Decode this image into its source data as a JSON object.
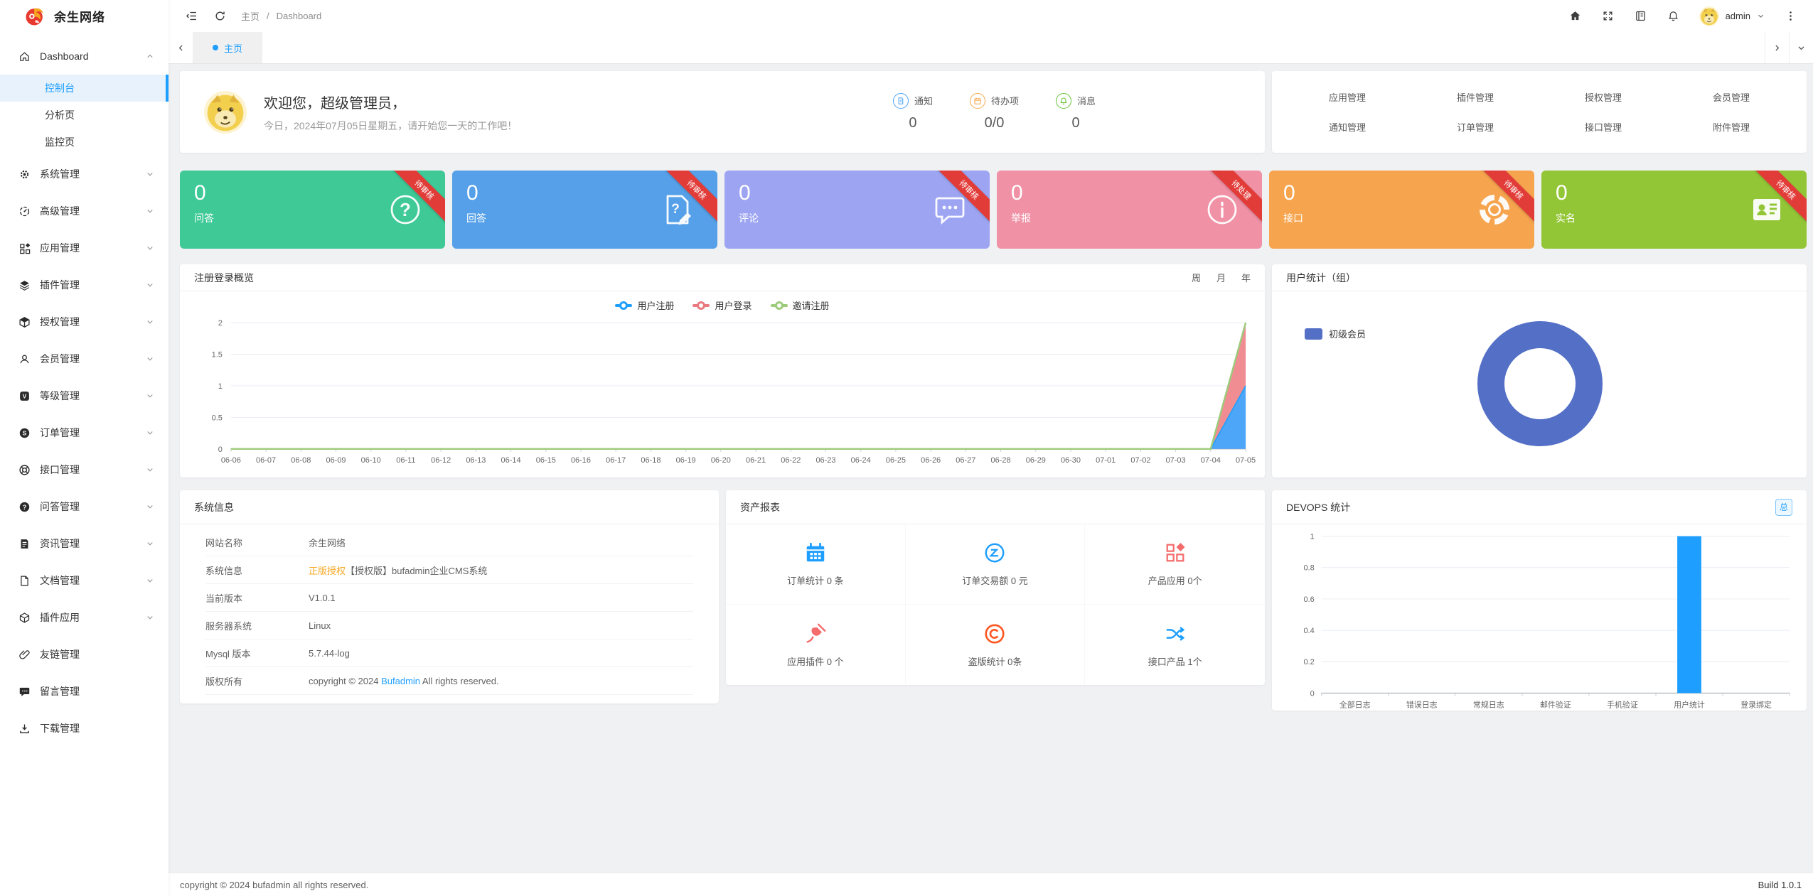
{
  "app": {
    "brand": "余生网络",
    "accent": "#1e9fff"
  },
  "header": {
    "left_icons": [
      "collapse-icon",
      "refresh-icon"
    ],
    "breadcrumb": {
      "home": "主页",
      "separator": "/",
      "current": "Dashboard"
    },
    "right_icons": [
      "home-solid-icon",
      "fullscreen-icon",
      "manual-icon",
      "bell-icon"
    ],
    "user": "admin"
  },
  "tabs": {
    "active": "主页"
  },
  "sidebar": {
    "sections": [
      {
        "id": "dashboard",
        "label": "Dashboard",
        "icon": "home-outline-icon",
        "expanded": true,
        "children": [
          {
            "label": "控制台",
            "active": true
          },
          {
            "label": "分析页"
          },
          {
            "label": "监控页"
          }
        ]
      },
      {
        "id": "system",
        "label": "系统管理",
        "icon": "gear-icon"
      },
      {
        "id": "advanced",
        "label": "高级管理",
        "icon": "gauge-icon"
      },
      {
        "id": "application",
        "label": "应用管理",
        "icon": "apps-icon"
      },
      {
        "id": "plugin",
        "label": "插件管理",
        "icon": "layers-icon"
      },
      {
        "id": "license",
        "label": "授权管理",
        "icon": "cube-icon"
      },
      {
        "id": "member",
        "label": "会员管理",
        "icon": "user-icon"
      },
      {
        "id": "level",
        "label": "等级管理",
        "icon": "v-badge-icon"
      },
      {
        "id": "order",
        "label": "订单管理",
        "icon": "s-badge-icon"
      },
      {
        "id": "api",
        "label": "接口管理",
        "icon": "lifebuoy-icon"
      },
      {
        "id": "qa",
        "label": "问答管理",
        "icon": "question-badge-icon"
      },
      {
        "id": "news",
        "label": "资讯管理",
        "icon": "news-icon"
      },
      {
        "id": "document",
        "label": "文档管理",
        "icon": "doc-icon"
      },
      {
        "id": "plugin-app",
        "label": "插件应用",
        "icon": "box-icon"
      },
      {
        "id": "friend-link",
        "label": "友链管理",
        "icon": "paperclip-icon",
        "has_children": false
      },
      {
        "id": "guestbook",
        "label": "留言管理",
        "icon": "speech-icon",
        "has_children": false
      },
      {
        "id": "download",
        "label": "下载管理",
        "icon": "download-icon",
        "has_children": false
      }
    ]
  },
  "welcome": {
    "title": "欢迎您，超级管理员，",
    "subtitle": "今日，2024年07月05日星期五，请开始您一天的工作吧！",
    "stats": [
      {
        "icon": "notice-icon",
        "color": "#4aa3f7",
        "label": "通知",
        "value": "0"
      },
      {
        "icon": "todo-icon",
        "color": "#f5a84c",
        "label": "待办项",
        "value": "0/0"
      },
      {
        "icon": "msg-bell-icon",
        "color": "#67c23a",
        "label": "消息",
        "value": "0"
      }
    ]
  },
  "quick_links": [
    "应用管理",
    "插件管理",
    "授权管理",
    "会员管理",
    "通知管理",
    "订单管理",
    "接口管理",
    "附件管理"
  ],
  "ribbon_color": "#e23c39",
  "stat_cards": [
    {
      "value": "0",
      "label": "问答",
      "ribbon": "待审核",
      "color": "#3ec997",
      "icon": "qa-circle-icon"
    },
    {
      "value": "0",
      "label": "回答",
      "ribbon": "待审核",
      "color": "#55a0e8",
      "icon": "answer-doc-icon"
    },
    {
      "value": "0",
      "label": "评论",
      "ribbon": "待审核",
      "color": "#9da5f2",
      "icon": "comment-bubble-icon"
    },
    {
      "value": "0",
      "label": "举报",
      "ribbon": "待处理",
      "color": "#f091a6",
      "icon": "info-circle-icon"
    },
    {
      "value": "0",
      "label": "接口",
      "ribbon": "待审核",
      "color": "#f6a44e",
      "icon": "lifebuoy-ring-icon"
    },
    {
      "value": "0",
      "label": "实名",
      "ribbon": "待审核",
      "color": "#93c637",
      "icon": "idcard-icon"
    }
  ],
  "chart_data": [
    {
      "type": "area",
      "title": "注册登录概览",
      "controls": [
        "周",
        "月",
        "年"
      ],
      "x": [
        "06-06",
        "06-07",
        "06-08",
        "06-09",
        "06-10",
        "06-11",
        "06-12",
        "06-13",
        "06-14",
        "06-15",
        "06-16",
        "06-17",
        "06-18",
        "06-19",
        "06-20",
        "06-21",
        "06-22",
        "06-23",
        "06-24",
        "06-25",
        "06-26",
        "06-27",
        "06-28",
        "06-29",
        "06-30",
        "07-01",
        "07-02",
        "07-03",
        "07-04",
        "07-05"
      ],
      "series": [
        {
          "name": "用户注册",
          "color": "#1e9fff",
          "fill": "#4da6f8",
          "values": [
            0,
            0,
            0,
            0,
            0,
            0,
            0,
            0,
            0,
            0,
            0,
            0,
            0,
            0,
            0,
            0,
            0,
            0,
            0,
            0,
            0,
            0,
            0,
            0,
            0,
            0,
            0,
            0,
            0,
            1
          ]
        },
        {
          "name": "用户登录",
          "color": "#e87a80",
          "fill": "#ef8d92",
          "values": [
            0,
            0,
            0,
            0,
            0,
            0,
            0,
            0,
            0,
            0,
            0,
            0,
            0,
            0,
            0,
            0,
            0,
            0,
            0,
            0,
            0,
            0,
            0,
            0,
            0,
            0,
            0,
            0,
            0,
            2
          ]
        },
        {
          "name": "邀请注册",
          "color": "#9ccb7a",
          "fill": null,
          "values": [
            0,
            0,
            0,
            0,
            0,
            0,
            0,
            0,
            0,
            0,
            0,
            0,
            0,
            0,
            0,
            0,
            0,
            0,
            0,
            0,
            0,
            0,
            0,
            0,
            0,
            0,
            0,
            0,
            0,
            2
          ]
        }
      ],
      "ylim": [
        0,
        2
      ],
      "yticks": [
        0,
        0.5,
        1,
        1.5,
        2
      ],
      "legend_position": "top",
      "grid": true
    },
    {
      "type": "pie",
      "title": "用户统计（组）",
      "donut": true,
      "labels": [
        "初级会员"
      ],
      "values": [
        1
      ],
      "colors": [
        "#5470c6"
      ],
      "legend_position": "top-left"
    },
    {
      "type": "bar",
      "title": "DEVOPS 统计",
      "badge": "总",
      "categories": [
        "全部日志",
        "错误日志",
        "常规日志",
        "邮件验证",
        "手机验证",
        "用户统计",
        "登录绑定"
      ],
      "values": [
        0,
        0,
        0,
        0,
        0,
        1,
        0
      ],
      "color": "#1e9fff",
      "ylim": [
        0,
        1
      ],
      "yticks": [
        0,
        0.2,
        0.4,
        0.6,
        0.8,
        1
      ],
      "grid": true
    }
  ],
  "system_info": {
    "title": "系统信息",
    "rows": [
      {
        "label": "网站名称",
        "parts": [
          {
            "text": "余生网络"
          }
        ]
      },
      {
        "label": "系统信息",
        "parts": [
          {
            "text": "正版授权",
            "color": "#f7a823"
          },
          {
            "text": "【授权版】bufadmin企业CMS系统"
          }
        ]
      },
      {
        "label": "当前版本",
        "parts": [
          {
            "text": "V1.0.1"
          }
        ]
      },
      {
        "label": "服务器系统",
        "parts": [
          {
            "text": "Linux"
          }
        ]
      },
      {
        "label": "Mysql 版本",
        "parts": [
          {
            "text": "5.7.44-log"
          }
        ]
      },
      {
        "label": "版权所有",
        "parts": [
          {
            "text": "copyright © 2024 "
          },
          {
            "text": "Bufadmin",
            "color": "#1e9fff"
          },
          {
            "text": " All rights reserved."
          }
        ]
      }
    ]
  },
  "asset_report": {
    "title": "资产报表",
    "items": [
      {
        "icon": "calendar-icon",
        "color": "#1e9fff",
        "label": "订单统计 0 条"
      },
      {
        "icon": "exchange-icon",
        "color": "#1e9fff",
        "label": "订单交易额 0 元"
      },
      {
        "icon": "product-icon",
        "color": "#f56c6c",
        "label": "产品应用 0个"
      },
      {
        "icon": "plug-icon",
        "color": "#f56c6c",
        "label": "应用插件 0 个"
      },
      {
        "icon": "copyright-icon",
        "color": "#ff5722",
        "label": "盗版统计 0条"
      },
      {
        "icon": "shuffle-icon",
        "color": "#1e9fff",
        "label": "接口产品 1个"
      }
    ]
  },
  "footer": {
    "left": "copyright © 2024 bufadmin all rights reserved.",
    "right": "Build 1.0.1"
  }
}
